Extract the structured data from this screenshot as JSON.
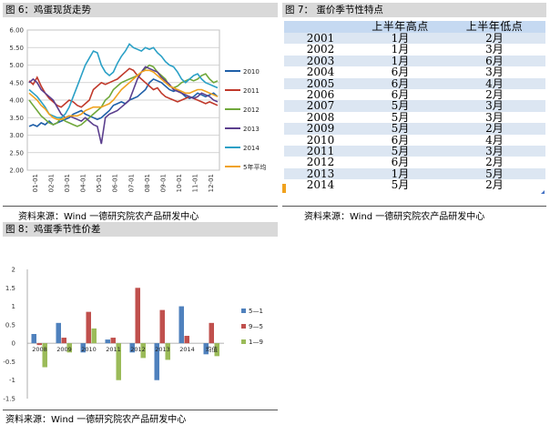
{
  "fig6": {
    "title": "图 6：鸡蛋现货走势",
    "source": "资料来源：Wind   一德研究院农产品研发中心"
  },
  "fig7": {
    "title": "图 7：  蛋价季节性特点",
    "source": "资料来源：Wind   一德研究院农产品研发中心",
    "headers": [
      "",
      "上半年高点",
      "上半年低点"
    ],
    "rows": [
      [
        "2001",
        "1月",
        "2月"
      ],
      [
        "2002",
        "1月",
        "3月"
      ],
      [
        "2003",
        "1月",
        "6月"
      ],
      [
        "2004",
        "6月",
        "3月"
      ],
      [
        "2005",
        "6月",
        "4月"
      ],
      [
        "2006",
        "6月",
        "2月"
      ],
      [
        "2007",
        "5月",
        "3月"
      ],
      [
        "2008",
        "5月",
        "3月"
      ],
      [
        "2009",
        "5月",
        "2月"
      ],
      [
        "2010",
        "6月",
        "4月"
      ],
      [
        "2011",
        "5月",
        "3月"
      ],
      [
        "2012",
        "6月",
        "2月"
      ],
      [
        "2013",
        "1月",
        "5月"
      ],
      [
        "2014",
        "5月",
        "2月"
      ]
    ]
  },
  "fig8": {
    "title": "图 8：鸡蛋季节性价差",
    "source": "资料来源：Wind   一德研究院农产品研发中心"
  },
  "chart_data": [
    {
      "type": "line",
      "y_ticks": [
        "6.00",
        "5.50",
        "5.00",
        "4.50",
        "4.00",
        "3.50",
        "3.00",
        "2.50",
        "2.00"
      ],
      "ylim": [
        2.0,
        6.0
      ],
      "grid": true,
      "x_ticks": [
        "01-01",
        "02-01",
        "03-01",
        "04-01",
        "05-01",
        "06-01",
        "07-01",
        "08-01",
        "09-01",
        "10-01",
        "11-01",
        "12-01"
      ],
      "legend_position": "right",
      "series": [
        {
          "name": "2010",
          "color": "#1f5fa8",
          "values": [
            3.25,
            3.3,
            3.25,
            3.35,
            3.3,
            3.4,
            3.3,
            3.35,
            3.4,
            3.45,
            3.5,
            3.6,
            3.65,
            3.7,
            3.6,
            3.55,
            3.5,
            3.45,
            3.5,
            3.6,
            3.7,
            3.85,
            3.9,
            3.95,
            3.9,
            4.0,
            4.05,
            4.1,
            4.2,
            4.3,
            4.5,
            4.6,
            4.55,
            4.5,
            4.4,
            4.3,
            4.25,
            4.3,
            4.2,
            4.1,
            4.05,
            4.1,
            4.2,
            4.15,
            4.1,
            4.15,
            4.2,
            4.1
          ]
        },
        {
          "name": "2011",
          "color": "#c0392b",
          "values": [
            4.55,
            4.45,
            4.65,
            4.4,
            4.2,
            4.05,
            3.95,
            3.85,
            3.8,
            3.9,
            4.0,
            3.95,
            3.85,
            3.8,
            3.9,
            4.0,
            4.3,
            4.4,
            4.5,
            4.45,
            4.5,
            4.55,
            4.6,
            4.7,
            4.8,
            4.9,
            4.85,
            4.7,
            4.6,
            4.5,
            4.4,
            4.3,
            4.35,
            4.2,
            4.1,
            4.05,
            4.0,
            3.95,
            4.0,
            4.05,
            4.1,
            4.05,
            4.0,
            3.95,
            3.9,
            3.95,
            3.9,
            3.85
          ]
        },
        {
          "name": "2012",
          "color": "#70a83b",
          "values": [
            4.0,
            3.85,
            3.7,
            3.55,
            3.45,
            3.35,
            3.3,
            3.35,
            3.5,
            3.4,
            3.35,
            3.3,
            3.25,
            3.3,
            3.4,
            3.5,
            3.6,
            3.7,
            3.8,
            4.0,
            4.1,
            4.3,
            4.4,
            4.5,
            4.55,
            4.6,
            4.65,
            4.7,
            4.8,
            4.9,
            5.0,
            4.95,
            4.8,
            4.7,
            4.6,
            4.4,
            4.35,
            4.4,
            4.5,
            4.55,
            4.6,
            4.55,
            4.6,
            4.7,
            4.75,
            4.6,
            4.5,
            4.55
          ]
        },
        {
          "name": "2013",
          "color": "#5b3f8e",
          "values": [
            4.5,
            4.6,
            4.5,
            4.3,
            4.2,
            4.1,
            4.0,
            3.8,
            3.6,
            3.5,
            3.55,
            3.5,
            3.45,
            3.4,
            3.5,
            3.4,
            3.3,
            3.25,
            2.75,
            3.5,
            3.6,
            3.65,
            3.7,
            3.8,
            3.9,
            4.0,
            4.3,
            4.6,
            4.8,
            4.95,
            4.9,
            4.85,
            4.8,
            4.65,
            4.55,
            4.45,
            4.3,
            4.25,
            4.2,
            4.15,
            4.1,
            4.05,
            4.1,
            4.2,
            4.15,
            4.1,
            4.0,
            3.95
          ]
        },
        {
          "name": "2014",
          "color": "#2aa0c6",
          "values": [
            4.3,
            4.2,
            4.1,
            3.95,
            3.8,
            3.6,
            3.55,
            3.5,
            3.5,
            3.6,
            3.8,
            4.1,
            4.4,
            4.7,
            5.0,
            5.2,
            5.4,
            5.35,
            5.0,
            4.8,
            4.7,
            4.8,
            5.05,
            5.25,
            5.4,
            5.6,
            5.5,
            5.45,
            5.4,
            5.5,
            5.45,
            5.5,
            5.35,
            5.25,
            5.1,
            5.0,
            4.95,
            4.8,
            4.6,
            4.5,
            4.6,
            4.7,
            4.75,
            4.6,
            4.5,
            4.45,
            4.4,
            4.35
          ]
        },
        {
          "name": "5年平均",
          "color": "#f0a21e",
          "values": [
            4.2,
            4.1,
            4.0,
            3.85,
            3.75,
            3.6,
            3.5,
            3.45,
            3.45,
            3.5,
            3.55,
            3.55,
            3.55,
            3.6,
            3.7,
            3.75,
            3.8,
            3.8,
            3.8,
            3.85,
            3.9,
            4.0,
            4.15,
            4.3,
            4.4,
            4.5,
            4.6,
            4.7,
            4.8,
            4.85,
            4.85,
            4.8,
            4.7,
            4.6,
            4.5,
            4.4,
            4.35,
            4.3,
            4.25,
            4.2,
            4.2,
            4.25,
            4.3,
            4.3,
            4.25,
            4.2,
            4.15,
            4.1
          ]
        }
      ]
    },
    {
      "type": "bar",
      "categories": [
        "2008",
        "2009",
        "2010",
        "2011",
        "2012",
        "2013",
        "2014",
        "均值"
      ],
      "y_ticks": [
        "2",
        "1.5",
        "1",
        "0.5",
        "0",
        "-0.5",
        "-1",
        "-1.5"
      ],
      "ylim": [
        -1.5,
        2.0
      ],
      "grid": false,
      "legend_position": "right",
      "series": [
        {
          "name": "5—1",
          "color": "#4f81bd",
          "values": [
            0.25,
            0.55,
            -0.25,
            0.1,
            -0.25,
            -1.0,
            1.0,
            -0.3
          ]
        },
        {
          "name": "9—5",
          "color": "#c0504d",
          "values": [
            -0.05,
            0.15,
            0.85,
            0.15,
            1.5,
            0.9,
            0.2,
            0.55
          ]
        },
        {
          "name": "1—9",
          "color": "#9bbb59",
          "values": [
            -0.65,
            -0.25,
            0.4,
            -1.0,
            -0.4,
            -0.45,
            0.0,
            -0.35
          ]
        }
      ]
    }
  ]
}
